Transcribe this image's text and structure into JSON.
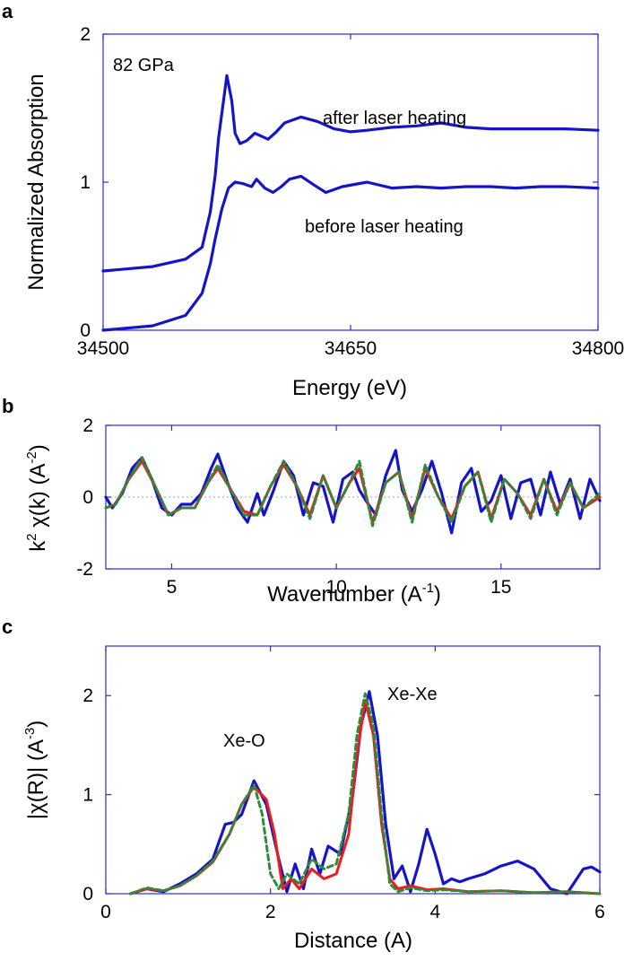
{
  "colors": {
    "frame": "#2b2bd6",
    "blue": "#1515c8",
    "red": "#ee1c1c",
    "green": "#2e8b3a",
    "zero_line": "#9aa0c0"
  },
  "chart_data": [
    {
      "panel": "a",
      "type": "line",
      "xlabel": "Energy (eV)",
      "ylabel": "Normalized Absorption",
      "xlim": [
        34500,
        34800
      ],
      "ylim": [
        0,
        2
      ],
      "xticks": [
        "34500",
        "34650",
        "34800"
      ],
      "yticks": [
        "0",
        "1",
        "2"
      ],
      "annotations": [
        "82 GPa",
        "after laser heating",
        "before laser heating"
      ],
      "series": [
        {
          "name": "after laser heating",
          "x": [
            34500,
            34530,
            34550,
            34560,
            34565,
            34568,
            34570,
            34573,
            34575,
            34578,
            34580,
            34583,
            34587,
            34592,
            34596,
            34600,
            34605,
            34610,
            34620,
            34630,
            34640,
            34650,
            34660,
            34675,
            34690,
            34705,
            34720,
            34735,
            34750,
            34765,
            34780,
            34800
          ],
          "y": [
            0.4,
            0.43,
            0.48,
            0.56,
            0.8,
            1.05,
            1.3,
            1.55,
            1.72,
            1.55,
            1.33,
            1.26,
            1.28,
            1.33,
            1.31,
            1.29,
            1.34,
            1.4,
            1.44,
            1.41,
            1.36,
            1.34,
            1.35,
            1.37,
            1.38,
            1.4,
            1.37,
            1.36,
            1.36,
            1.36,
            1.36,
            1.35
          ]
        },
        {
          "name": "before laser heating",
          "x": [
            34500,
            34530,
            34550,
            34560,
            34565,
            34568,
            34572,
            34576,
            34580,
            34585,
            34590,
            34593,
            34598,
            34603,
            34608,
            34613,
            34620,
            34628,
            34635,
            34645,
            34660,
            34675,
            34690,
            34705,
            34720,
            34735,
            34750,
            34765,
            34780,
            34800
          ],
          "y": [
            0.0,
            0.03,
            0.1,
            0.25,
            0.45,
            0.62,
            0.82,
            0.96,
            1.0,
            0.99,
            0.97,
            1.02,
            0.96,
            0.93,
            0.97,
            1.02,
            1.04,
            0.98,
            0.93,
            0.97,
            1.0,
            0.96,
            0.97,
            0.96,
            0.97,
            0.97,
            0.96,
            0.97,
            0.97,
            0.96
          ]
        }
      ]
    },
    {
      "panel": "b",
      "type": "line",
      "xlabel": "Wavenumber (A",
      "xlabel_sup": "-1",
      "xlabel_end": ")",
      "ylabel": "k",
      "ylabel_sup": "2",
      "ylabel_mid": " χ(k) (A",
      "ylabel_sup2": "-2",
      "ylabel_end": ")",
      "xlim": [
        3,
        18
      ],
      "ylim": [
        -2,
        2
      ],
      "xticks": [
        5,
        10,
        15
      ],
      "yticks": [
        "-2",
        "0",
        "2"
      ],
      "series": [
        {
          "style": "solid-blue",
          "x": [
            3.0,
            3.2,
            3.5,
            3.8,
            4.1,
            4.4,
            4.7,
            5.0,
            5.3,
            5.6,
            5.9,
            6.2,
            6.4,
            6.7,
            7.0,
            7.3,
            7.6,
            7.8,
            8.1,
            8.4,
            8.7,
            9.0,
            9.3,
            9.6,
            9.9,
            10.2,
            10.5,
            10.7,
            10.9,
            11.2,
            11.5,
            11.8,
            12.0,
            12.3,
            12.6,
            12.9,
            13.2,
            13.5,
            13.8,
            14.1,
            14.4,
            14.7,
            15.0,
            15.3,
            15.6,
            15.9,
            16.2,
            16.5,
            16.8,
            17.1,
            17.4,
            17.7,
            18.0
          ],
          "y": [
            0.0,
            -0.3,
            0.1,
            0.8,
            1.1,
            0.5,
            -0.3,
            -0.5,
            -0.2,
            -0.2,
            0.1,
            0.8,
            1.2,
            0.4,
            -0.3,
            -0.7,
            0.1,
            -0.5,
            0.2,
            1.0,
            0.6,
            -0.5,
            0.4,
            0.3,
            -0.7,
            0.5,
            0.7,
            0.2,
            -0.1,
            -0.5,
            0.6,
            1.3,
            0.2,
            -0.4,
            0.2,
            1.0,
            0.1,
            -1.0,
            0.4,
            0.8,
            -0.4,
            -0.1,
            0.6,
            -0.6,
            0.4,
            0.5,
            -0.5,
            0.7,
            -0.2,
            0.5,
            -0.6,
            0.5,
            -0.1
          ]
        },
        {
          "style": "solid-red",
          "x": [
            3.0,
            3.3,
            3.7,
            4.1,
            4.5,
            4.9,
            5.3,
            5.7,
            6.1,
            6.4,
            6.8,
            7.2,
            7.6,
            8.0,
            8.4,
            8.8,
            9.2,
            9.6,
            10.0,
            10.4,
            10.7,
            11.1,
            11.5,
            11.9,
            12.3,
            12.7,
            13.1,
            13.5,
            13.9,
            14.3,
            14.7,
            15.1,
            15.5,
            15.9,
            16.3,
            16.7,
            17.1,
            17.5,
            18.0
          ],
          "y": [
            -0.3,
            -0.2,
            0.5,
            1.0,
            0.3,
            -0.5,
            -0.3,
            -0.3,
            0.4,
            0.8,
            0.2,
            -0.4,
            -0.5,
            0.3,
            0.9,
            0.3,
            -0.5,
            0.6,
            -0.3,
            0.4,
            0.8,
            -0.7,
            0.4,
            0.7,
            -0.6,
            0.8,
            0.0,
            -0.6,
            0.3,
            0.7,
            -0.6,
            0.5,
            0.1,
            -0.5,
            0.5,
            -0.4,
            0.4,
            -0.3,
            0.0
          ]
        },
        {
          "style": "dashed-green",
          "x": [
            3.0,
            3.3,
            3.7,
            4.1,
            4.5,
            4.9,
            5.3,
            5.7,
            6.1,
            6.4,
            6.8,
            7.2,
            7.6,
            8.0,
            8.4,
            8.8,
            9.2,
            9.6,
            10.0,
            10.4,
            10.7,
            11.1,
            11.5,
            11.9,
            12.3,
            12.7,
            13.1,
            13.5,
            13.9,
            14.3,
            14.7,
            15.1,
            15.5,
            15.9,
            16.3,
            16.7,
            17.1,
            17.5,
            18.0
          ],
          "y": [
            -0.3,
            -0.2,
            0.5,
            1.1,
            0.3,
            -0.5,
            -0.3,
            -0.3,
            0.4,
            0.9,
            0.2,
            -0.5,
            -0.5,
            0.3,
            1.0,
            0.3,
            -0.6,
            0.6,
            -0.3,
            0.4,
            1.0,
            -0.8,
            0.4,
            0.7,
            -0.7,
            0.9,
            0.0,
            -0.7,
            0.3,
            0.7,
            -0.7,
            0.5,
            0.1,
            -0.6,
            0.5,
            -0.5,
            0.4,
            -0.3,
            0.1
          ]
        }
      ]
    },
    {
      "panel": "c",
      "type": "line",
      "xlabel": "Distance (A)",
      "ylabel": "|χ(R)|  (A",
      "ylabel_sup": "-3",
      "ylabel_end": ")",
      "xlim": [
        0,
        6
      ],
      "ylim": [
        0,
        2.5
      ],
      "xticks": [
        0,
        2,
        4,
        6
      ],
      "yticks": [
        0,
        1,
        2
      ],
      "annotations": [
        "Xe-O",
        "Xe-Xe"
      ],
      "series": [
        {
          "style": "solid-blue",
          "x": [
            0.3,
            0.5,
            0.7,
            0.9,
            1.1,
            1.3,
            1.45,
            1.55,
            1.65,
            1.8,
            1.95,
            2.1,
            2.2,
            2.3,
            2.4,
            2.5,
            2.6,
            2.7,
            2.85,
            3.0,
            3.1,
            3.2,
            3.3,
            3.4,
            3.5,
            3.6,
            3.7,
            3.8,
            3.9,
            4.0,
            4.1,
            4.2,
            4.3,
            4.4,
            4.6,
            4.8,
            5.0,
            5.2,
            5.4,
            5.6,
            5.8,
            5.9,
            6.0
          ],
          "y": [
            0.0,
            0.05,
            0.02,
            0.1,
            0.2,
            0.35,
            0.7,
            0.72,
            0.8,
            1.14,
            0.9,
            0.35,
            0.02,
            0.3,
            0.05,
            0.45,
            0.2,
            0.48,
            0.4,
            1.0,
            1.7,
            2.04,
            1.6,
            0.7,
            0.15,
            0.28,
            0.02,
            0.3,
            0.65,
            0.4,
            0.1,
            0.15,
            0.12,
            0.15,
            0.2,
            0.28,
            0.33,
            0.25,
            0.05,
            0.0,
            0.25,
            0.27,
            0.22
          ]
        },
        {
          "style": "solid-red",
          "x": [
            0.3,
            0.5,
            0.7,
            0.9,
            1.1,
            1.3,
            1.5,
            1.65,
            1.8,
            1.95,
            2.05,
            2.15,
            2.25,
            2.35,
            2.5,
            2.65,
            2.8,
            2.95,
            3.05,
            3.15,
            3.25,
            3.35,
            3.45,
            3.55,
            3.7,
            3.9,
            4.1,
            4.4,
            4.8,
            5.2,
            5.6,
            6.0
          ],
          "y": [
            0.0,
            0.05,
            0.03,
            0.08,
            0.18,
            0.32,
            0.6,
            0.9,
            1.08,
            0.95,
            0.6,
            0.05,
            0.15,
            0.05,
            0.25,
            0.15,
            0.2,
            0.6,
            1.4,
            1.95,
            1.6,
            0.7,
            0.15,
            0.05,
            0.08,
            0.04,
            0.05,
            0.02,
            0.03,
            0.01,
            0.02,
            0.0
          ]
        },
        {
          "style": "dashed-green",
          "x": [
            0.3,
            0.5,
            0.7,
            0.9,
            1.1,
            1.3,
            1.5,
            1.65,
            1.8,
            1.9,
            2.0,
            2.1,
            2.2,
            2.35,
            2.5,
            2.65,
            2.8,
            2.95,
            3.05,
            3.15,
            3.25,
            3.35,
            3.45,
            3.55,
            3.7,
            3.9,
            4.1,
            4.4,
            4.8,
            5.2,
            5.6,
            6.0
          ],
          "y": [
            0.0,
            0.06,
            0.03,
            0.08,
            0.18,
            0.33,
            0.6,
            0.9,
            1.1,
            0.8,
            0.2,
            0.05,
            0.2,
            0.1,
            0.35,
            0.25,
            0.3,
            0.8,
            1.6,
            2.02,
            1.7,
            0.8,
            0.1,
            0.02,
            0.06,
            0.03,
            0.04,
            0.02,
            0.03,
            0.01,
            0.02,
            0.0
          ]
        }
      ]
    }
  ]
}
